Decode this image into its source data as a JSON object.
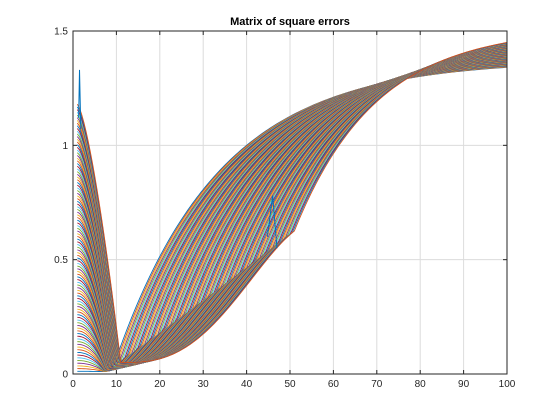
{
  "chart_data": {
    "type": "line",
    "title": "Matrix of square errors",
    "xlabel": "",
    "ylabel": "",
    "xlim": [
      0,
      100
    ],
    "ylim": [
      0,
      1.5
    ],
    "grid": true,
    "legend": "none",
    "x_ticks": [
      0,
      10,
      20,
      30,
      40,
      50,
      60,
      70,
      80,
      90,
      100
    ],
    "x_tick_labels": [
      "0",
      "10",
      "20",
      "30",
      "40",
      "50",
      "60",
      "70",
      "80",
      "90",
      "100"
    ],
    "y_ticks": [
      0,
      0.5,
      1,
      1.5
    ],
    "y_tick_labels": [
      "0",
      "0.5",
      "1",
      "1.5"
    ],
    "series_color_cycle": [
      "#0072bd",
      "#d95319",
      "#edb120",
      "#7e2f8e",
      "#77ac30",
      "#4dbeee",
      "#a2142f"
    ],
    "series_count": 100,
    "x_range": [
      1,
      100
    ],
    "descending_family": {
      "start_values_at_x1": [
        0.0,
        1.18
      ],
      "minimum_values": [
        0.01,
        0.05
      ],
      "minimum_x_range": [
        5,
        11
      ]
    },
    "rising_family": {
      "start_x_range": [
        9,
        51
      ],
      "values_at_x100": [
        1.34,
        1.45
      ]
    },
    "spikes": [
      {
        "x": 1.5,
        "y": 1.33
      },
      {
        "x": 46,
        "y": 0.78
      }
    ],
    "colors": {
      "axes_edge": "#262626",
      "grid": "#dcdcdc",
      "background": "#ffffff"
    }
  }
}
